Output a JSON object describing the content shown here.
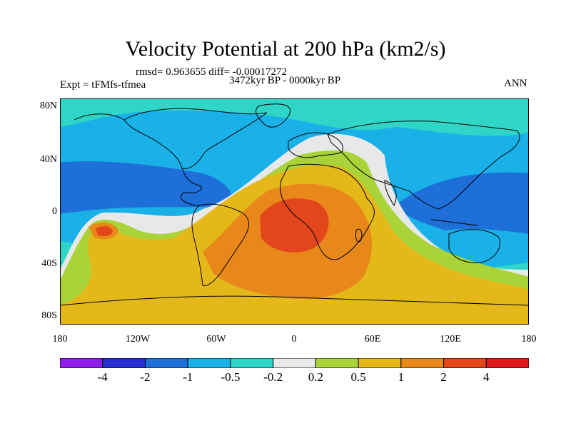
{
  "title": "Velocity Potential at 200 hPa (km2/s)",
  "stats_line": "rmsd= 0.963655 diff= -0.00017272",
  "experiment": "Expt = tFMfs-tfmea",
  "period": "3472kyr BP - 0000kyr BP",
  "season": "ANN",
  "y_axis_labels": [
    "80N",
    "40N",
    "0",
    "40S",
    "80S"
  ],
  "x_axis_labels": [
    "180",
    "120W",
    "60W",
    "0",
    "60E",
    "120E",
    "180"
  ],
  "colorbar": {
    "labels": [
      "-4",
      "-2",
      "-1",
      "-0.5",
      "-0.2",
      "0.2",
      "0.5",
      "1",
      "2",
      "4"
    ],
    "colors": [
      "#8f1fe8",
      "#2a2fd4",
      "#1e6fd8",
      "#1ab0e8",
      "#2fd6c7",
      "#e8e8e8",
      "#a8d43a",
      "#e5b81a",
      "#e8881a",
      "#e2461a",
      "#e01a1a"
    ]
  },
  "colors": {
    "land_outline": "#000000",
    "background": "#ffffff"
  }
}
